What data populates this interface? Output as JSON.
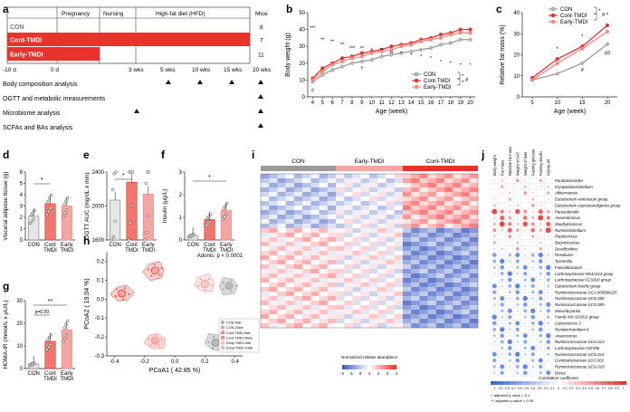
{
  "panel_letters": [
    "a",
    "b",
    "c",
    "d",
    "e",
    "f",
    "g",
    "h",
    "i",
    "j"
  ],
  "colors": {
    "con": "#9a9a9a",
    "cont": "#e8332b",
    "early": "#f08a84",
    "heat_hi": "#d92b2b",
    "heat_lo": "#3a4fb0"
  },
  "panel_a": {
    "phase_labels": [
      "Pregnancy",
      "Nursing",
      "High-fat diet (HFD)"
    ],
    "mice_header": "Mice",
    "groups": [
      {
        "name": "CON",
        "n": "8"
      },
      {
        "name": "Cont-TMDI",
        "n": "7"
      },
      {
        "name": "Early-TMDI",
        "n": "11"
      }
    ],
    "timepoints": [
      "-10 d",
      "0 d",
      "3 wks",
      "5 wks",
      "10 wks",
      "15 wks",
      "20 wks"
    ],
    "analyses": [
      "Body composition analysis",
      "OGTT and metabolic measurements",
      "Microbiome analysis",
      "SCFAs and BAs analysis"
    ]
  },
  "chart_data": [
    {
      "panel": "b",
      "type": "line",
      "xlabel": "Age (week)",
      "ylabel": "Body weight (g)",
      "ylim": [
        0,
        50
      ],
      "yticks": [
        0,
        10,
        20,
        30,
        40,
        50
      ],
      "x": [
        4,
        5,
        6,
        7,
        8,
        9,
        10,
        11,
        12,
        13,
        14,
        15,
        16,
        17,
        18,
        19,
        20
      ],
      "series": [
        {
          "name": "CON",
          "values": [
            9,
            13,
            16,
            18,
            20,
            21,
            22,
            24,
            25,
            26,
            27,
            28,
            29,
            31,
            32,
            34,
            34
          ]
        },
        {
          "name": "Cont-TMDI",
          "values": [
            11,
            17,
            20,
            23,
            24,
            26,
            27,
            28,
            30,
            31,
            32,
            34,
            35,
            37,
            38,
            40,
            40
          ]
        },
        {
          "name": "Early-TMDI",
          "values": [
            10,
            15,
            19,
            21,
            23,
            24,
            26,
            27,
            28,
            30,
            31,
            33,
            34,
            35,
            37,
            38,
            38
          ]
        }
      ],
      "annotations": [
        "***",
        "**",
        "**",
        "**",
        "***",
        "**",
        "*",
        "**",
        "**",
        "*",
        "*",
        "*",
        "*",
        "*",
        "*",
        "*",
        "*",
        "#",
        "†"
      ]
    },
    {
      "panel": "c",
      "type": "line",
      "xlabel": "Age (week)",
      "ylabel": "Relative fat mass (%)",
      "ylim": [
        0,
        40
      ],
      "yticks": [
        0,
        10,
        20,
        30,
        40
      ],
      "x": [
        5,
        10,
        15,
        20
      ],
      "series": [
        {
          "name": "CON",
          "values": [
            8,
            11,
            16,
            25
          ]
        },
        {
          "name": "Cont-TMDI",
          "values": [
            9,
            18,
            24,
            34
          ]
        },
        {
          "name": "Early-TMDI",
          "values": [
            8,
            16,
            23,
            31
          ]
        }
      ],
      "annotations": [
        "*",
        "*",
        "*",
        "#",
        "##"
      ]
    },
    {
      "panel": "d",
      "type": "bar",
      "ylabel": "Visceral adipose tissue (g)",
      "categories": [
        "CON",
        "Cont TMDI",
        "Early TMDI"
      ],
      "values": [
        2.1,
        3.2,
        3.0
      ],
      "ylim": [
        0,
        6
      ],
      "yticks": [
        0,
        1,
        2,
        3,
        4,
        5,
        6
      ],
      "annotations": [
        "*"
      ]
    },
    {
      "panel": "e",
      "type": "bar",
      "ylabel": "OGTT AUC (mg/dL x min)",
      "categories": [
        "CON",
        "Cont TMDI",
        "Early TMDI"
      ],
      "values": [
        2070,
        2280,
        2140
      ],
      "ylim": [
        1600,
        2400
      ],
      "yticks": [
        1600,
        2000,
        2400
      ],
      "annotations": [
        "*"
      ]
    },
    {
      "panel": "f",
      "type": "bar",
      "ylabel": "Insulin (μg/L)",
      "categories": [
        "CON",
        "Cont TMDI",
        "Early TMDI"
      ],
      "values": [
        0.2,
        0.9,
        1.3
      ],
      "ylim": [
        0,
        3
      ],
      "yticks": [
        0,
        1,
        2,
        3
      ],
      "annotations": [
        "*"
      ]
    },
    {
      "panel": "g",
      "type": "bar",
      "ylabel": "HOMA-IR (mmol/L x μU/L)",
      "categories": [
        "CON",
        "Cont TMDI",
        "Early TMDI"
      ],
      "values": [
        2,
        12,
        17
      ],
      "ylim": [
        0,
        30
      ],
      "yticks": [
        0,
        10,
        20,
        30
      ],
      "annotations": [
        "p=0.09",
        "**"
      ]
    },
    {
      "panel": "h",
      "type": "scatter",
      "xlabel": "PCoA1 ( 42.85 %)",
      "ylabel": "PCoA2 ( 19.04 %)",
      "xticks": [
        "-0.4",
        "-0.2",
        "0.0",
        "0.2",
        "0.4"
      ],
      "yticks": [
        "0.2",
        "0.1",
        "0.0",
        "-0.1",
        "-0.2",
        "-0.3"
      ],
      "series": [
        {
          "name": "CON-5wk",
          "centroid": [
            0.36,
            0.07
          ]
        },
        {
          "name": "CON-20wk",
          "centroid": [
            0.27,
            -0.23
          ]
        },
        {
          "name": "Cont-TMDI-5wk",
          "centroid": [
            -0.35,
            0.03
          ]
        },
        {
          "name": "Cont-TMDI-20wk",
          "centroid": [
            -0.13,
            0.15
          ]
        },
        {
          "name": "Early-TMDI-5wk",
          "centroid": [
            0.2,
            0.08
          ]
        },
        {
          "name": "Early-TMDI-20wk",
          "centroid": [
            -0.13,
            -0.22
          ]
        }
      ],
      "annotation": "Adonis: p < 0.0001"
    }
  ],
  "panel_i": {
    "groups": [
      "CON",
      "Early-TMDI",
      "Cont-TMDI"
    ],
    "legend_title": "Normalized relative abundance",
    "legend_ticks": [
      "-2",
      "-1",
      "0",
      "1",
      "2",
      "3",
      "4"
    ]
  },
  "panel_j": {
    "columns": [
      "Body weight",
      "Fat mass",
      "Relative fat mass",
      "Weight of VAT",
      "Weight of liver",
      "Fasting glucose",
      "Fasting insulin",
      "HOMA-IR"
    ],
    "taxa": [
      "Parabacteroides",
      "Erysipelatoclostridium",
      "Akkermansia",
      "Eubacterium ventriosum group",
      "Eubacterium coprostanoligenes group",
      "Parasutterella",
      "Anaerotruncus",
      "Staphylococcus",
      "Ruminiclostridium",
      "Peptococcus",
      "Butyricicoccus",
      "Desulfovibrio",
      "Roseburia",
      "Tyzzerella",
      "Faecalibaculum",
      "Lachnospiraceae NK4A214 group",
      "Lachnospiraceae FCS020 group",
      "Eubacterium brachy group",
      "Ruminococcaceae GCA.900066225",
      "Ruminococcaceae UCG.006",
      "Ruminococcaceae UCG.009",
      "Marvinbryantia",
      "Family XIII AD3011 group",
      "Coprococcus 3",
      "Ruminiclostridium 6",
      "Anaerovorax",
      "Ruminococcaceae UCG.013",
      "Lachnospiraceae ASF356",
      "Ruminococcaceae UCG.014",
      "Coriobacteriaceae UCG.002",
      "Ruminococcaceae UCG.010",
      "Dorea"
    ],
    "legend_title": "Correlation coefficient",
    "legend_ticks": [
      "-1",
      "-0.9",
      "-0.8",
      "-0.7",
      "-0.6",
      "-0.5",
      "-0.4",
      "-0.3",
      "-0.2",
      "-0.1",
      "0",
      "0.1",
      "0.2",
      "0.3",
      "0.4",
      "0.5",
      "0.6",
      "0.7",
      "0.8",
      "0.9",
      "1"
    ],
    "footnotes": [
      "*: adjusted p-value < 0.1",
      "**: adjusted p-value < 0.05"
    ]
  }
}
